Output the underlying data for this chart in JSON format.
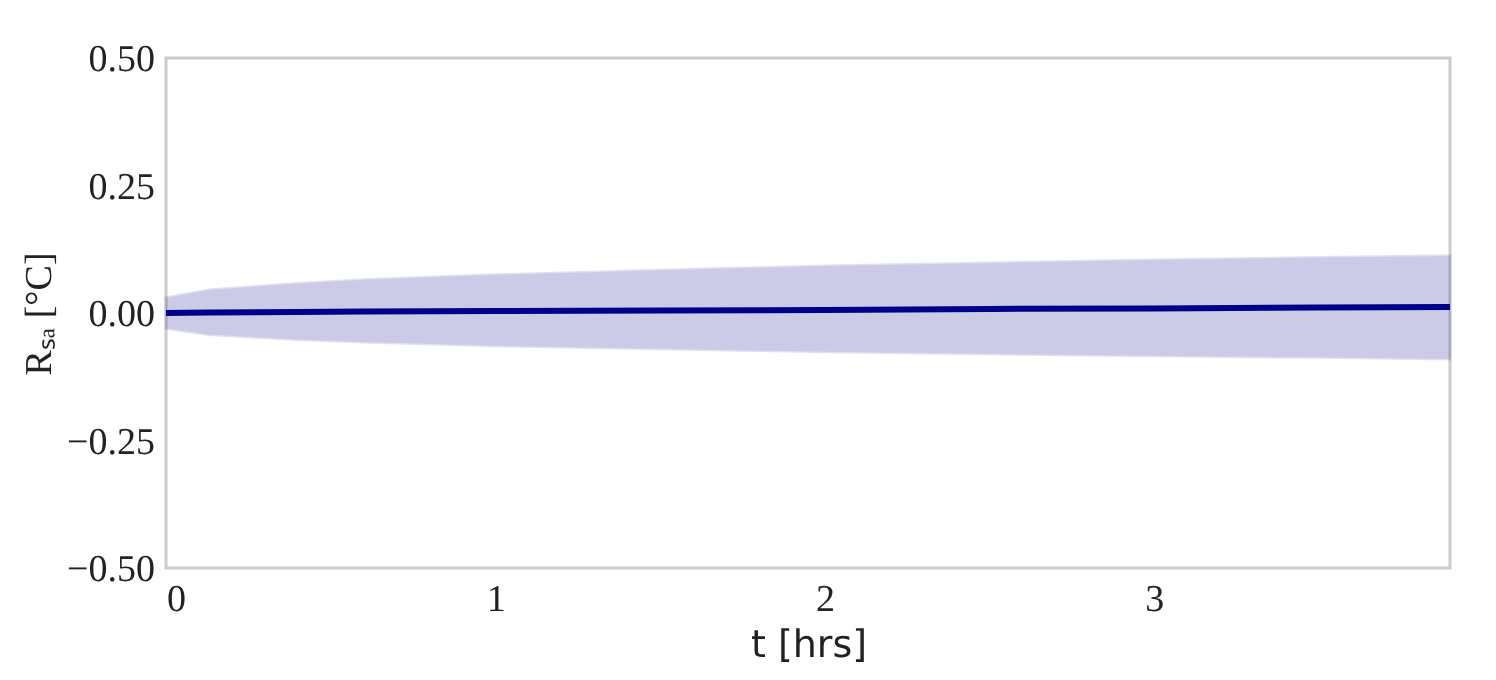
{
  "chart_data": {
    "type": "line",
    "xlabel": "t [hrs]",
    "ylabel": "Rₛₐ [°C]",
    "x": [
      0,
      0.13,
      0.4,
      0.6,
      1,
      1.5,
      2,
      2.5,
      3,
      3.5,
      3.9
    ],
    "series": [
      {
        "color": "#00008b",
        "values": [
          0,
          0.001,
          0.002,
          0.003,
          0.004,
          0.005,
          0.006,
          0.008,
          0.009,
          0.011,
          0.012
        ],
        "lower": [
          -0.03,
          -0.042,
          -0.052,
          -0.057,
          -0.064,
          -0.07,
          -0.076,
          -0.08,
          -0.084,
          -0.087,
          -0.09
        ],
        "upper": [
          0.03,
          0.045,
          0.058,
          0.065,
          0.075,
          0.084,
          0.092,
          0.098,
          0.104,
          0.109,
          0.112
        ]
      }
    ],
    "xlim": [
      0,
      3.9
    ],
    "xticks": [
      0,
      1,
      2,
      3
    ],
    "ylim": [
      -0.5,
      0.5
    ],
    "yticks": [
      {
        "value": -0.5,
        "label": "−0.50"
      },
      {
        "value": -0.25,
        "label": "−0.25"
      },
      {
        "value": 0,
        "label": "0.00"
      },
      {
        "value": 0.25,
        "label": "0.25"
      },
      {
        "value": 0.5,
        "label": "0.50"
      }
    ],
    "grid": false
  }
}
